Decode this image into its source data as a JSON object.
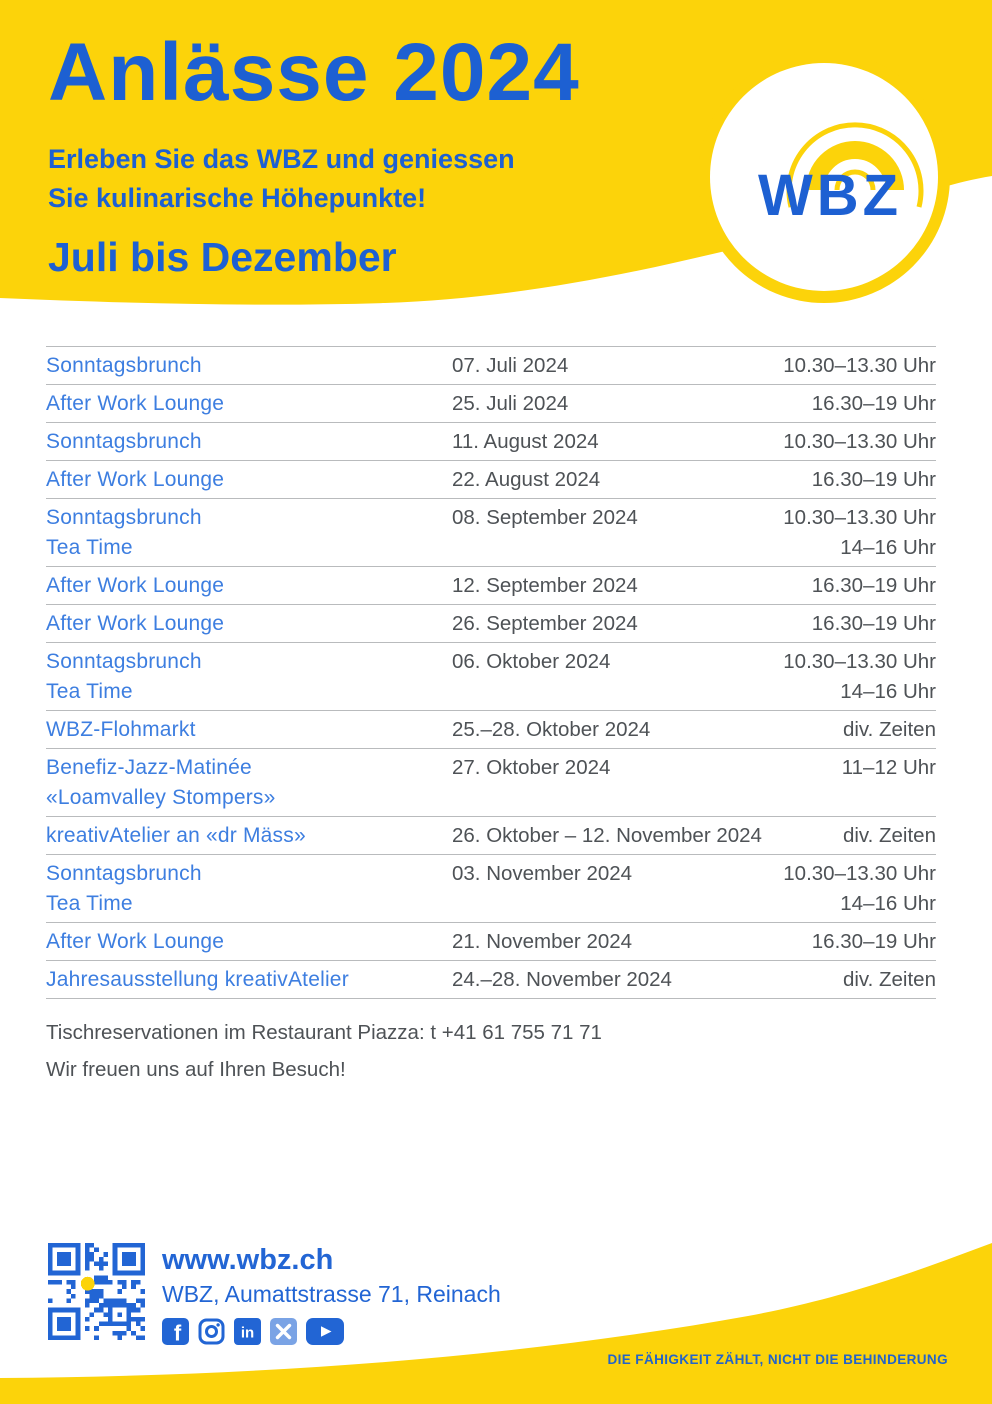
{
  "header": {
    "title": "Anlässe 2024",
    "subtitle_line1": "Erleben Sie das WBZ und geniessen",
    "subtitle_line2": "Sie kulinarische Höhepunkte!",
    "period": "Juli bis Dezember",
    "logo_text": "WBZ"
  },
  "colors": {
    "yellow": "#FCD30A",
    "blue_title": "#1D60D2",
    "blue_link": "#3D7EE0",
    "blue_footer": "#2265D4",
    "text_dark": "#4E5256",
    "line_gray": "#B9BBBD"
  },
  "events": {
    "rows": [
      {
        "names": [
          "Sonntagsbrunch"
        ],
        "date": "07. Juli 2024",
        "times": [
          "10.30–13.30 Uhr"
        ]
      },
      {
        "names": [
          "After Work Lounge"
        ],
        "date": "25. Juli 2024",
        "times": [
          "16.30–19 Uhr"
        ]
      },
      {
        "names": [
          "Sonntagsbrunch"
        ],
        "date": "11. August 2024",
        "times": [
          "10.30–13.30 Uhr"
        ]
      },
      {
        "names": [
          "After Work Lounge"
        ],
        "date": "22. August 2024",
        "times": [
          "16.30–19 Uhr"
        ]
      },
      {
        "names": [
          "Sonntagsbrunch",
          "Tea Time"
        ],
        "date": "08. September 2024",
        "times": [
          "10.30–13.30 Uhr",
          "14–16 Uhr"
        ]
      },
      {
        "names": [
          "After Work Lounge"
        ],
        "date": "12. September 2024",
        "times": [
          "16.30–19 Uhr"
        ]
      },
      {
        "names": [
          "After Work Lounge"
        ],
        "date": "26. September 2024",
        "times": [
          "16.30–19 Uhr"
        ]
      },
      {
        "names": [
          "Sonntagsbrunch",
          "Tea Time"
        ],
        "date": "06. Oktober 2024",
        "times": [
          "10.30–13.30 Uhr",
          "14–16 Uhr"
        ]
      },
      {
        "names": [
          "WBZ-Flohmarkt"
        ],
        "date": "25.–28. Oktober 2024",
        "times": [
          "div. Zeiten"
        ]
      },
      {
        "names": [
          "Benefiz-Jazz-Matinée",
          "«Loamvalley Stompers»"
        ],
        "date": "27. Oktober 2024",
        "times": [
          "11–12 Uhr"
        ]
      },
      {
        "names": [
          "kreativAtelier an «dr Mäss»"
        ],
        "date": "26. Oktober – 12. November 2024",
        "times": [
          "div. Zeiten"
        ]
      },
      {
        "names": [
          "Sonntagsbrunch",
          "Tea Time"
        ],
        "date": "03. November 2024",
        "times": [
          "10.30–13.30 Uhr",
          "14–16 Uhr"
        ]
      },
      {
        "names": [
          "After Work Lounge"
        ],
        "date": "21. November 2024",
        "times": [
          "16.30–19 Uhr"
        ]
      },
      {
        "names": [
          "Jahresausstellung kreativAtelier"
        ],
        "date": "24.–28. November 2024",
        "times": [
          "div. Zeiten"
        ]
      }
    ]
  },
  "notes": {
    "reservation": "Tischreservationen im Restaurant Piazza: t +41 61 755 71 71",
    "welcome": "Wir freuen uns auf Ihren Besuch!"
  },
  "footer": {
    "website": "www.wbz.ch",
    "address": "WBZ, Aumattstrasse 71, Reinach",
    "social": [
      "facebook",
      "instagram",
      "linkedin",
      "x",
      "youtube"
    ],
    "qr": "qr-code"
  },
  "bottom_banner": {
    "slogan": "DIE FÄHIGKEIT ZÄHLT, NICHT DIE BEHINDERUNG"
  }
}
